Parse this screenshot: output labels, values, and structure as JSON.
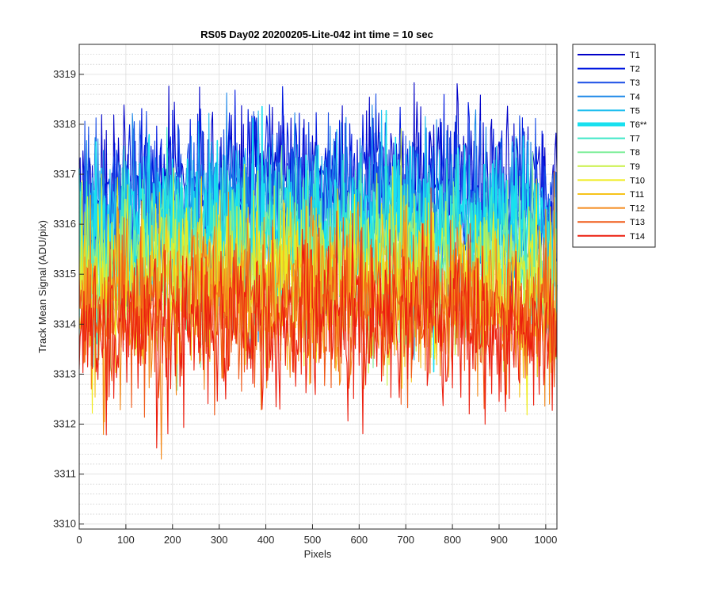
{
  "chart_data": {
    "type": "line",
    "title": "RS05 Day02 20200205-Lite-042 int time = 10 sec",
    "xlabel": "Pixels",
    "ylabel": "Track Mean Signal (ADU/pix)",
    "xlim": [
      0,
      1024
    ],
    "ylim": [
      3309.9,
      3319.6
    ],
    "xticks": [
      0,
      100,
      200,
      300,
      400,
      500,
      600,
      700,
      800,
      900,
      1000
    ],
    "yticks": [
      3310,
      3311,
      3312,
      3313,
      3314,
      3315,
      3316,
      3317,
      3318,
      3319
    ],
    "grid": "on (major and minor)",
    "legend_location": "outside top-right",
    "series": [
      {
        "name": "T1",
        "color": "#0000c8",
        "mean_approx": 3316.6,
        "noise_sd_approx": 0.8
      },
      {
        "name": "T2",
        "color": "#0018e0",
        "mean_approx": 3316.4,
        "noise_sd_approx": 0.8
      },
      {
        "name": "T3",
        "color": "#1a4fe6",
        "mean_approx": 3316.2,
        "noise_sd_approx": 0.8
      },
      {
        "name": "T4",
        "color": "#1e88e8",
        "mean_approx": 3316.0,
        "noise_sd_approx": 0.8
      },
      {
        "name": "T5",
        "color": "#1ebeef",
        "mean_approx": 3315.8,
        "noise_sd_approx": 0.8
      },
      {
        "name": "T6**",
        "color": "#19e0ef",
        "mean_approx": 3315.6,
        "noise_sd_approx": 0.8,
        "highlighted": true
      },
      {
        "name": "T7",
        "color": "#3ee8c8",
        "mean_approx": 3315.3,
        "noise_sd_approx": 0.8
      },
      {
        "name": "T8",
        "color": "#7fee9a",
        "mean_approx": 3315.0,
        "noise_sd_approx": 0.8
      },
      {
        "name": "T9",
        "color": "#c8f046",
        "mean_approx": 3314.8,
        "noise_sd_approx": 0.8
      },
      {
        "name": "T10",
        "color": "#f0ec1e",
        "mean_approx": 3314.6,
        "noise_sd_approx": 0.8
      },
      {
        "name": "T11",
        "color": "#f6c31a",
        "mean_approx": 3314.4,
        "noise_sd_approx": 0.8
      },
      {
        "name": "T12",
        "color": "#f48a1c",
        "mean_approx": 3314.2,
        "noise_sd_approx": 0.8
      },
      {
        "name": "T13",
        "color": "#f05a18",
        "mean_approx": 3314.0,
        "noise_sd_approx": 0.8
      },
      {
        "name": "T14",
        "color": "#ec1e0e",
        "mean_approx": 3313.8,
        "noise_sd_approx": 0.8
      }
    ]
  }
}
